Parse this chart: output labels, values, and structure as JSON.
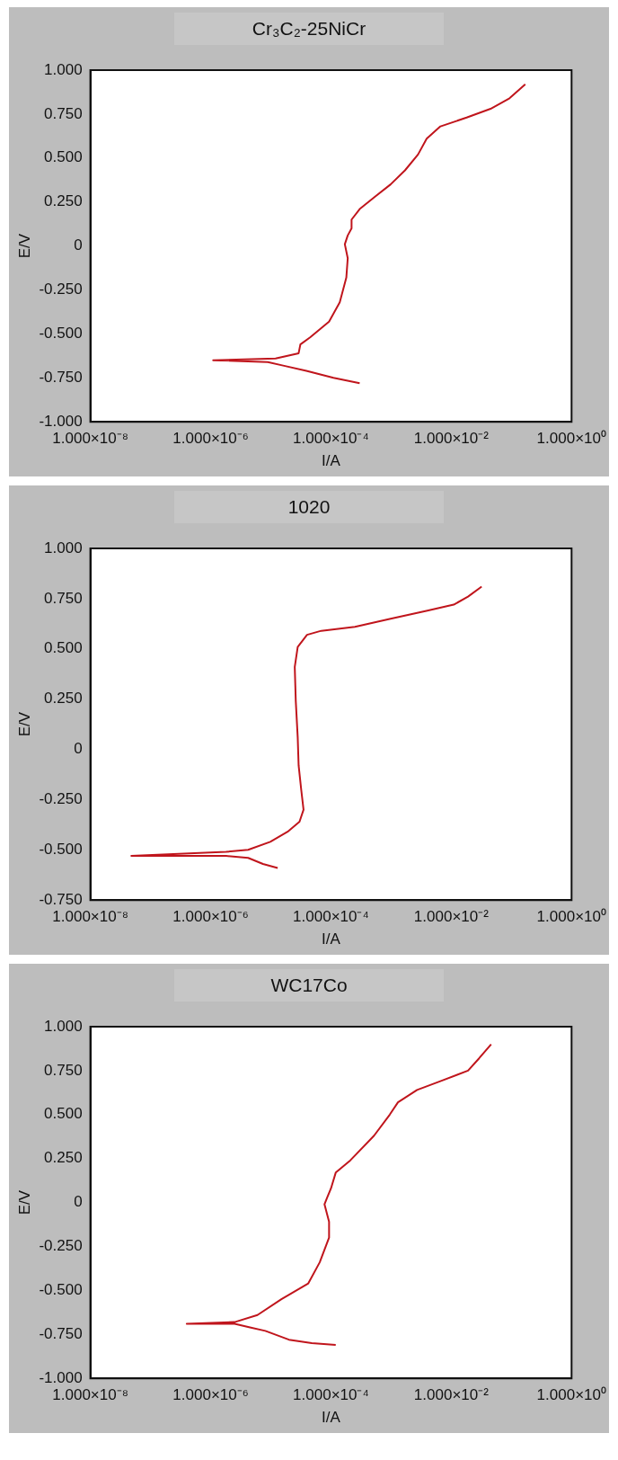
{
  "chart_data": [
    {
      "type": "line",
      "title": "Cr₃C₂-25NiCr",
      "xlabel": "I/A",
      "ylabel": "E/V",
      "log": "x",
      "color": "#c0151c",
      "x": [
        0.0003,
        0.00011,
        3.9e-05,
        1.6e-05,
        8.9e-06,
        1.1e-06,
        1.2e-05,
        2.9e-05,
        3.1e-05,
        4.5e-05,
        9.3e-05,
        0.00014,
        0.00018,
        0.00019,
        0.00017,
        0.00019,
        0.00022,
        0.00022,
        0.0003,
        0.00054,
        0.00098,
        0.0017,
        0.0028,
        0.0039,
        0.0066,
        0.018,
        0.045,
        0.093,
        0.17
      ],
      "values": [
        -0.78,
        -0.75,
        -0.71,
        -0.68,
        -0.66,
        -0.65,
        -0.64,
        -0.61,
        -0.56,
        -0.52,
        -0.43,
        -0.32,
        -0.18,
        -0.07,
        0.01,
        0.06,
        0.1,
        0.15,
        0.21,
        0.28,
        0.35,
        0.43,
        0.52,
        0.61,
        0.68,
        0.73,
        0.78,
        0.84,
        0.92
      ],
      "xlim": [
        1e-08,
        1
      ],
      "xticks": [
        {
          "value": 1e-08,
          "label": "1.000×10⁻⁸"
        },
        {
          "value": 1e-06,
          "label": "1.000×10⁻⁶"
        },
        {
          "value": 0.0001,
          "label": "1.000×10⁻⁴"
        },
        {
          "value": 0.01,
          "label": "1.000×10⁻²"
        },
        {
          "value": 1,
          "label": "1.000×10⁰"
        }
      ],
      "ylim": [
        -1,
        1
      ],
      "yticks": [
        {
          "value": -1,
          "label": "-1.000"
        },
        {
          "value": -0.75,
          "label": "-0.750"
        },
        {
          "value": -0.5,
          "label": "-0.500"
        },
        {
          "value": -0.25,
          "label": "-0.250"
        },
        {
          "value": 0,
          "label": "0"
        },
        {
          "value": 0.25,
          "label": "0.250"
        },
        {
          "value": 0.5,
          "label": "0.500"
        },
        {
          "value": 0.75,
          "label": "0.750"
        },
        {
          "value": 1,
          "label": "1.000"
        }
      ]
    },
    {
      "type": "line",
      "title": "1020",
      "xlabel": "I/A",
      "ylabel": "E/V",
      "log": "x",
      "color": "#c0151c",
      "x": [
        1.3e-05,
        7.4e-06,
        4.2e-06,
        1.8e-06,
        4.8e-08,
        1.8e-06,
        4.2e-06,
        9.8e-06,
        1.9e-05,
        3e-05,
        3.5e-05,
        3.2e-05,
        2.9e-05,
        2.8e-05,
        2.6e-05,
        2.5e-05,
        2.8e-05,
        4e-05,
        6.9e-05,
        0.00025,
        0.00098,
        0.004,
        0.011,
        0.019,
        0.032
      ],
      "values": [
        -0.59,
        -0.57,
        -0.54,
        -0.53,
        -0.53,
        -0.51,
        -0.5,
        -0.46,
        -0.41,
        -0.36,
        -0.3,
        -0.2,
        -0.08,
        0.06,
        0.24,
        0.41,
        0.51,
        0.57,
        0.59,
        0.61,
        0.65,
        0.69,
        0.72,
        0.76,
        0.81
      ],
      "xlim": [
        1e-08,
        1
      ],
      "xticks": [
        {
          "value": 1e-08,
          "label": "1.000×10⁻⁸"
        },
        {
          "value": 1e-06,
          "label": "1.000×10⁻⁶"
        },
        {
          "value": 0.0001,
          "label": "1.000×10⁻⁴"
        },
        {
          "value": 0.01,
          "label": "1.000×10⁻²"
        },
        {
          "value": 1,
          "label": "1.000×10⁰"
        }
      ],
      "ylim": [
        -0.75,
        1
      ],
      "yticks": [
        {
          "value": -0.75,
          "label": "-0.750"
        },
        {
          "value": -0.5,
          "label": "-0.500"
        },
        {
          "value": -0.25,
          "label": "-0.250"
        },
        {
          "value": 0,
          "label": "0"
        },
        {
          "value": 0.25,
          "label": "0.250"
        },
        {
          "value": 0.5,
          "label": "0.500"
        },
        {
          "value": 0.75,
          "label": "0.750"
        },
        {
          "value": 1,
          "label": "1.000"
        }
      ]
    },
    {
      "type": "line",
      "title": "WC17Co",
      "xlabel": "I/A",
      "ylabel": "E/V",
      "log": "x",
      "color": "#c0151c",
      "x": [
        0.00012,
        4.8e-05,
        2e-05,
        8.1e-06,
        4.5e-06,
        2.5e-06,
        4e-07,
        2.5e-06,
        6e-06,
        1.5e-05,
        4.2e-05,
        6.5e-05,
        9.3e-05,
        9.3e-05,
        7.8e-05,
        8.7e-05,
        0.0001,
        0.00012,
        0.00021,
        0.00052,
        0.00095,
        0.0013,
        0.0027,
        0.0066,
        0.019,
        0.029,
        0.046
      ],
      "values": [
        -0.81,
        -0.8,
        -0.78,
        -0.73,
        -0.71,
        -0.69,
        -0.69,
        -0.68,
        -0.64,
        -0.55,
        -0.46,
        -0.34,
        -0.2,
        -0.11,
        -0.01,
        0.03,
        0.08,
        0.17,
        0.24,
        0.38,
        0.5,
        0.57,
        0.64,
        0.69,
        0.75,
        0.82,
        0.9
      ],
      "xlim": [
        1e-08,
        1
      ],
      "xticks": [
        {
          "value": 1e-08,
          "label": "1.000×10⁻⁸"
        },
        {
          "value": 1e-06,
          "label": "1.000×10⁻⁶"
        },
        {
          "value": 0.0001,
          "label": "1.000×10⁻⁴"
        },
        {
          "value": 0.01,
          "label": "1.000×10⁻²"
        },
        {
          "value": 1,
          "label": "1.000×10⁰"
        }
      ],
      "ylim": [
        -1,
        1
      ],
      "yticks": [
        {
          "value": -1,
          "label": "-1.000"
        },
        {
          "value": -0.75,
          "label": "-0.750"
        },
        {
          "value": -0.5,
          "label": "-0.500"
        },
        {
          "value": -0.25,
          "label": "-0.250"
        },
        {
          "value": 0,
          "label": "0"
        },
        {
          "value": 0.25,
          "label": "0.250"
        },
        {
          "value": 0.5,
          "label": "0.500"
        },
        {
          "value": 0.75,
          "label": "0.750"
        },
        {
          "value": 1,
          "label": "1.000"
        }
      ]
    }
  ]
}
